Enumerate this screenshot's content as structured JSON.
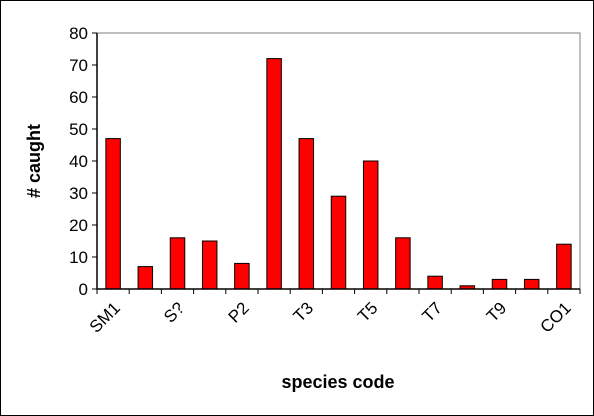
{
  "chart_data": {
    "type": "bar",
    "xlabel": "species code",
    "ylabel": "# caught",
    "ylim": [
      0,
      80
    ],
    "y_ticks": [
      0,
      10,
      20,
      30,
      40,
      50,
      60,
      70,
      80
    ],
    "categories": [
      "SM1",
      "",
      "S?",
      "",
      "P2",
      "",
      "T3",
      "",
      "T5",
      "",
      "T7",
      "",
      "T9",
      "",
      "CO1"
    ],
    "values": [
      47,
      7,
      16,
      15,
      8,
      72,
      47,
      29,
      40,
      16,
      4,
      1,
      3,
      3,
      14
    ],
    "grid": false,
    "legend": "none"
  },
  "colors": {
    "bar_fill": "#ff0000",
    "bar_stroke": "#000000",
    "axis": "#000000",
    "plot_border": "#808080",
    "frame": "#000000"
  }
}
